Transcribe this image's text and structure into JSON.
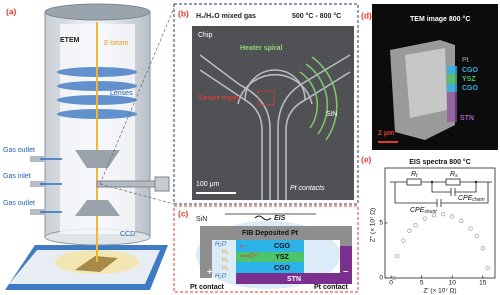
{
  "panel_a": {
    "label": "(a)",
    "etem": "ETEM",
    "ebeam": "E-beam",
    "lenses": "Lenses",
    "gas_outlet_top": "Gas outlet",
    "gas_inlet": "Gas inlet",
    "gas_outlet_bottom": "Gas outlet",
    "ccd": "CCD"
  },
  "panel_b": {
    "label": "(b)",
    "gas": "H₂/H₂O mixed gas",
    "temperature": "500 °C - 800 °C",
    "chip": "Chip",
    "heater": "Heater spiral",
    "sin": "SiN",
    "sample": "Sample region",
    "scale": "100 μm",
    "contacts": "Pt contacts"
  },
  "panel_c": {
    "label": "(c)",
    "sin": "SiN",
    "eis": "EIS",
    "pt": "FIB Deposited Pt",
    "h2o_top": "H₂O",
    "h2_top": "H₂",
    "h2_mid": "H₂",
    "electron": "e⁻",
    "oxide_ion": "O²⁻",
    "cgo_top": "CGO",
    "ysz": "YSZ",
    "cgo_bottom": "CGO",
    "h2_bottom": "H₂",
    "h2o_bottom": "H₂O",
    "stn": "STN",
    "plus": "+",
    "minus": "−",
    "contact_left": "Pt contact",
    "contact_right": "Pt contact"
  },
  "panel_d": {
    "label": "(d)",
    "title": "TEM image 800 °C",
    "pt": "Pt",
    "cgo_top": "CGO",
    "ysz": "YSZ",
    "cgo_bottom": "CGO",
    "stn": "STN",
    "scale": "2 μm"
  },
  "chart_data": {
    "type": "scatter",
    "panel_label": "(e)",
    "title": "EIS spectra 800 °C",
    "circuit": {
      "r1": {
        "main": "R",
        "sub": "t"
      },
      "r2": {
        "main": "R",
        "sub": "s"
      },
      "cpe1": {
        "main": "CPE",
        "sub": "chem"
      },
      "cpe2": {
        "main": "CPE",
        "sub": "shunt"
      }
    },
    "x_label": "Z' (× 10⁷ Ω)",
    "y_label": "Z'' (× 10⁷ Ω)",
    "x": [
      0.5,
      1,
      2,
      3,
      4,
      5.5,
      7,
      8.5,
      10,
      11.5,
      13,
      14,
      15,
      15.8
    ],
    "values": [
      0,
      2.0,
      3.4,
      4.3,
      4.8,
      5.4,
      5.7,
      5.8,
      5.6,
      5.2,
      4.5,
      3.8,
      2.7,
      0.9
    ],
    "color": "#9a9a9a",
    "xlim": [
      -1,
      17
    ],
    "xticks": [
      0,
      5,
      10,
      15
    ],
    "ylim": [
      0,
      10
    ],
    "yticks": [
      0,
      5
    ]
  }
}
